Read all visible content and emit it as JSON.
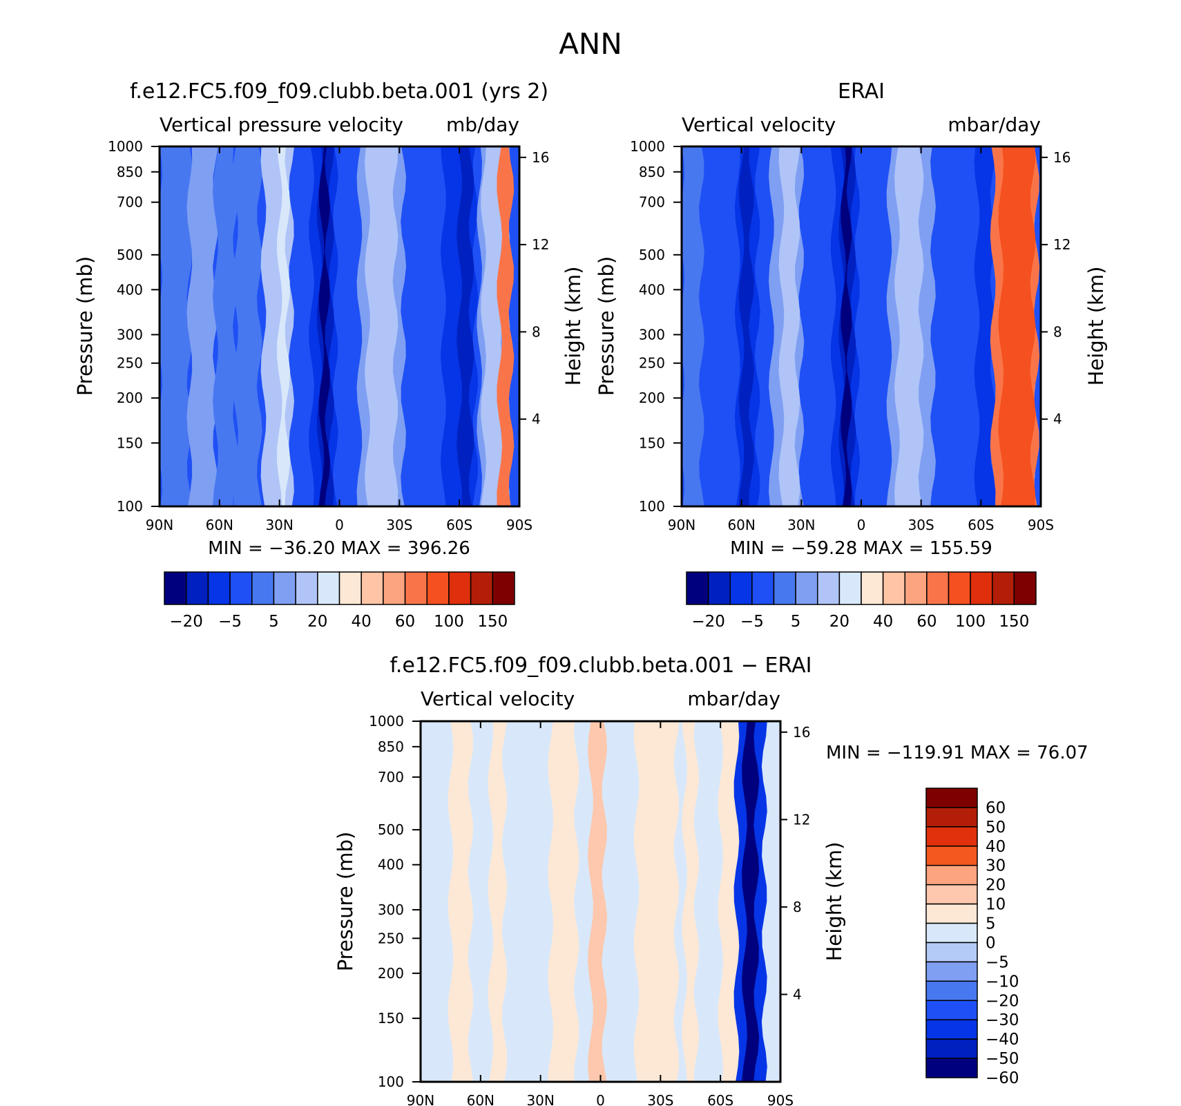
{
  "page_title": "ANN",
  "chart_data": [
    {
      "type": "heatmap",
      "title": "f.e12.FC5.f09_f09.clubb.beta.001 (yrs 2)",
      "subtitle_left": "Vertical pressure velocity",
      "subtitle_right": "mb/day",
      "ylabel": "Pressure (mb)",
      "ylabel_right": "Height (km)",
      "x_ticks": [
        "90N",
        "60N",
        "30N",
        "0",
        "30S",
        "60S",
        "90S"
      ],
      "y_ticks": [
        "100",
        "150",
        "200",
        "250",
        "300",
        "400",
        "500",
        "700",
        "850",
        "1000"
      ],
      "y_right_ticks": [
        "16",
        "12",
        "8",
        "4"
      ],
      "min_max_text": "MIN = −36.20   MAX = 396.26",
      "colorbar_labels": [
        "−20",
        "−5",
        "5",
        "20",
        "40",
        "60",
        "100",
        "150"
      ],
      "colorbar_colors": [
        "#00007f",
        "#0020c0",
        "#0535e6",
        "#1f50f5",
        "#4878f0",
        "#7f9ff2",
        "#b0c4f8",
        "#d8e8fa",
        "#fde8d6",
        "#fdc4a6",
        "#fca47f",
        "#f97549",
        "#f5501f",
        "#e02f0c",
        "#b21e08",
        "#7f0000"
      ],
      "ylim": [
        1000,
        100
      ],
      "xlim": [
        "90N",
        "90S"
      ],
      "bands": [
        {
          "x": [
            -90,
            -75
          ],
          "level": 4
        },
        {
          "x": [
            -75,
            -62
          ],
          "level": 5
        },
        {
          "x": [
            -62,
            -52
          ],
          "level": 4
        },
        {
          "x": [
            -52,
            -40
          ],
          "level": 4
        },
        {
          "x": [
            -38,
            -24
          ],
          "level": 6
        },
        {
          "x": [
            -30,
            -26
          ],
          "level": 7
        },
        {
          "x": [
            -14,
            -2
          ],
          "level": 2
        },
        {
          "x": [
            -10,
            -4
          ],
          "level": 1
        },
        {
          "x": [
            -9,
            -6
          ],
          "level": 0
        },
        {
          "x": [
            10,
            32
          ],
          "level": 5
        },
        {
          "x": [
            14,
            28
          ],
          "level": 6
        },
        {
          "x": [
            52,
            68
          ],
          "level": 2
        },
        {
          "x": [
            60,
            66
          ],
          "level": 1
        },
        {
          "x": [
            70,
            84
          ],
          "level": 5
        },
        {
          "x": [
            72,
            82
          ],
          "level": 6
        },
        {
          "x": [
            80,
            86
          ],
          "level": 11
        }
      ]
    },
    {
      "type": "heatmap",
      "title": "ERAI",
      "subtitle_left": "Vertical velocity",
      "subtitle_right": "mbar/day",
      "ylabel": "Pressure (mb)",
      "ylabel_right": "Height (km)",
      "x_ticks": [
        "90N",
        "60N",
        "30N",
        "0",
        "30S",
        "60S",
        "90S"
      ],
      "y_ticks": [
        "100",
        "150",
        "200",
        "250",
        "300",
        "400",
        "500",
        "700",
        "850",
        "1000"
      ],
      "y_right_ticks": [
        "16",
        "12",
        "8",
        "4"
      ],
      "min_max_text": "MIN = −59.28   MAX = 155.59",
      "colorbar_labels": [
        "−20",
        "−5",
        "5",
        "20",
        "40",
        "60",
        "100",
        "150"
      ],
      "colorbar_colors": [
        "#00007f",
        "#0020c0",
        "#0535e6",
        "#1f50f5",
        "#4878f0",
        "#7f9ff2",
        "#b0c4f8",
        "#d8e8fa",
        "#fde8d6",
        "#fdc4a6",
        "#fca47f",
        "#f97549",
        "#f5501f",
        "#e02f0c",
        "#b21e08",
        "#7f0000"
      ],
      "ylim": [
        1000,
        100
      ],
      "xlim": [
        "90N",
        "90S"
      ],
      "bands": [
        {
          "x": [
            -90,
            -80
          ],
          "level": 4
        },
        {
          "x": [
            -62,
            -52
          ],
          "level": 2
        },
        {
          "x": [
            -60,
            -55
          ],
          "level": 1
        },
        {
          "x": [
            -45,
            -30
          ],
          "level": 5
        },
        {
          "x": [
            -40,
            -32
          ],
          "level": 6
        },
        {
          "x": [
            -14,
            -2
          ],
          "level": 2
        },
        {
          "x": [
            -10,
            -4
          ],
          "level": 1
        },
        {
          "x": [
            -9,
            -6
          ],
          "level": 0
        },
        {
          "x": [
            14,
            36
          ],
          "level": 5
        },
        {
          "x": [
            18,
            30
          ],
          "level": 6
        },
        {
          "x": [
            58,
            66
          ],
          "level": 2
        },
        {
          "x": [
            72,
            86
          ],
          "level": 5
        },
        {
          "x": [
            66,
            88
          ],
          "level": 11
        },
        {
          "x": [
            70,
            86
          ],
          "level": 12
        }
      ]
    },
    {
      "type": "heatmap",
      "title": "f.e12.FC5.f09_f09.clubb.beta.001 − ERAI",
      "subtitle_left": "Vertical velocity",
      "subtitle_right": "mbar/day",
      "ylabel": "Pressure (mb)",
      "ylabel_right": "Height (km)",
      "x_ticks": [
        "90N",
        "60N",
        "30N",
        "0",
        "30S",
        "60S",
        "90S"
      ],
      "y_ticks": [
        "100",
        "150",
        "200",
        "250",
        "300",
        "400",
        "500",
        "700",
        "850",
        "1000"
      ],
      "y_right_ticks": [
        "16",
        "12",
        "8",
        "4"
      ],
      "min_max_text": "MIN = −119.91   MAX =   76.07",
      "colorbar_labels": [
        "60",
        "50",
        "40",
        "30",
        "20",
        "10",
        "5",
        "0",
        "−5",
        "−10",
        "−20",
        "−30",
        "−40",
        "−50",
        "−60"
      ],
      "colorbar_colors": [
        "#7f0000",
        "#b21e08",
        "#e0300c",
        "#f5581f",
        "#fca47f",
        "#fdc8ad",
        "#fde8d6",
        "#d8e8fa",
        "#b4cbf8",
        "#7f9ff2",
        "#4878f0",
        "#1f50f5",
        "#0535e6",
        "#0020c0",
        "#00007f"
      ],
      "ylim": [
        1000,
        100
      ],
      "xlim": [
        "90N",
        "90S"
      ],
      "bands": [
        {
          "x": [
            -75,
            -65
          ],
          "level": 6
        },
        {
          "x": [
            -55,
            -48
          ],
          "level": 6
        },
        {
          "x": [
            -25,
            -12
          ],
          "level": 6
        },
        {
          "x": [
            -5,
            2
          ],
          "level": 5
        },
        {
          "x": [
            18,
            38
          ],
          "level": 6
        },
        {
          "x": [
            42,
            48
          ],
          "level": 6
        },
        {
          "x": [
            60,
            80
          ],
          "level": 6
        },
        {
          "x": [
            68,
            82
          ],
          "level": 12
        },
        {
          "x": [
            72,
            78
          ],
          "level": 14
        }
      ]
    }
  ]
}
